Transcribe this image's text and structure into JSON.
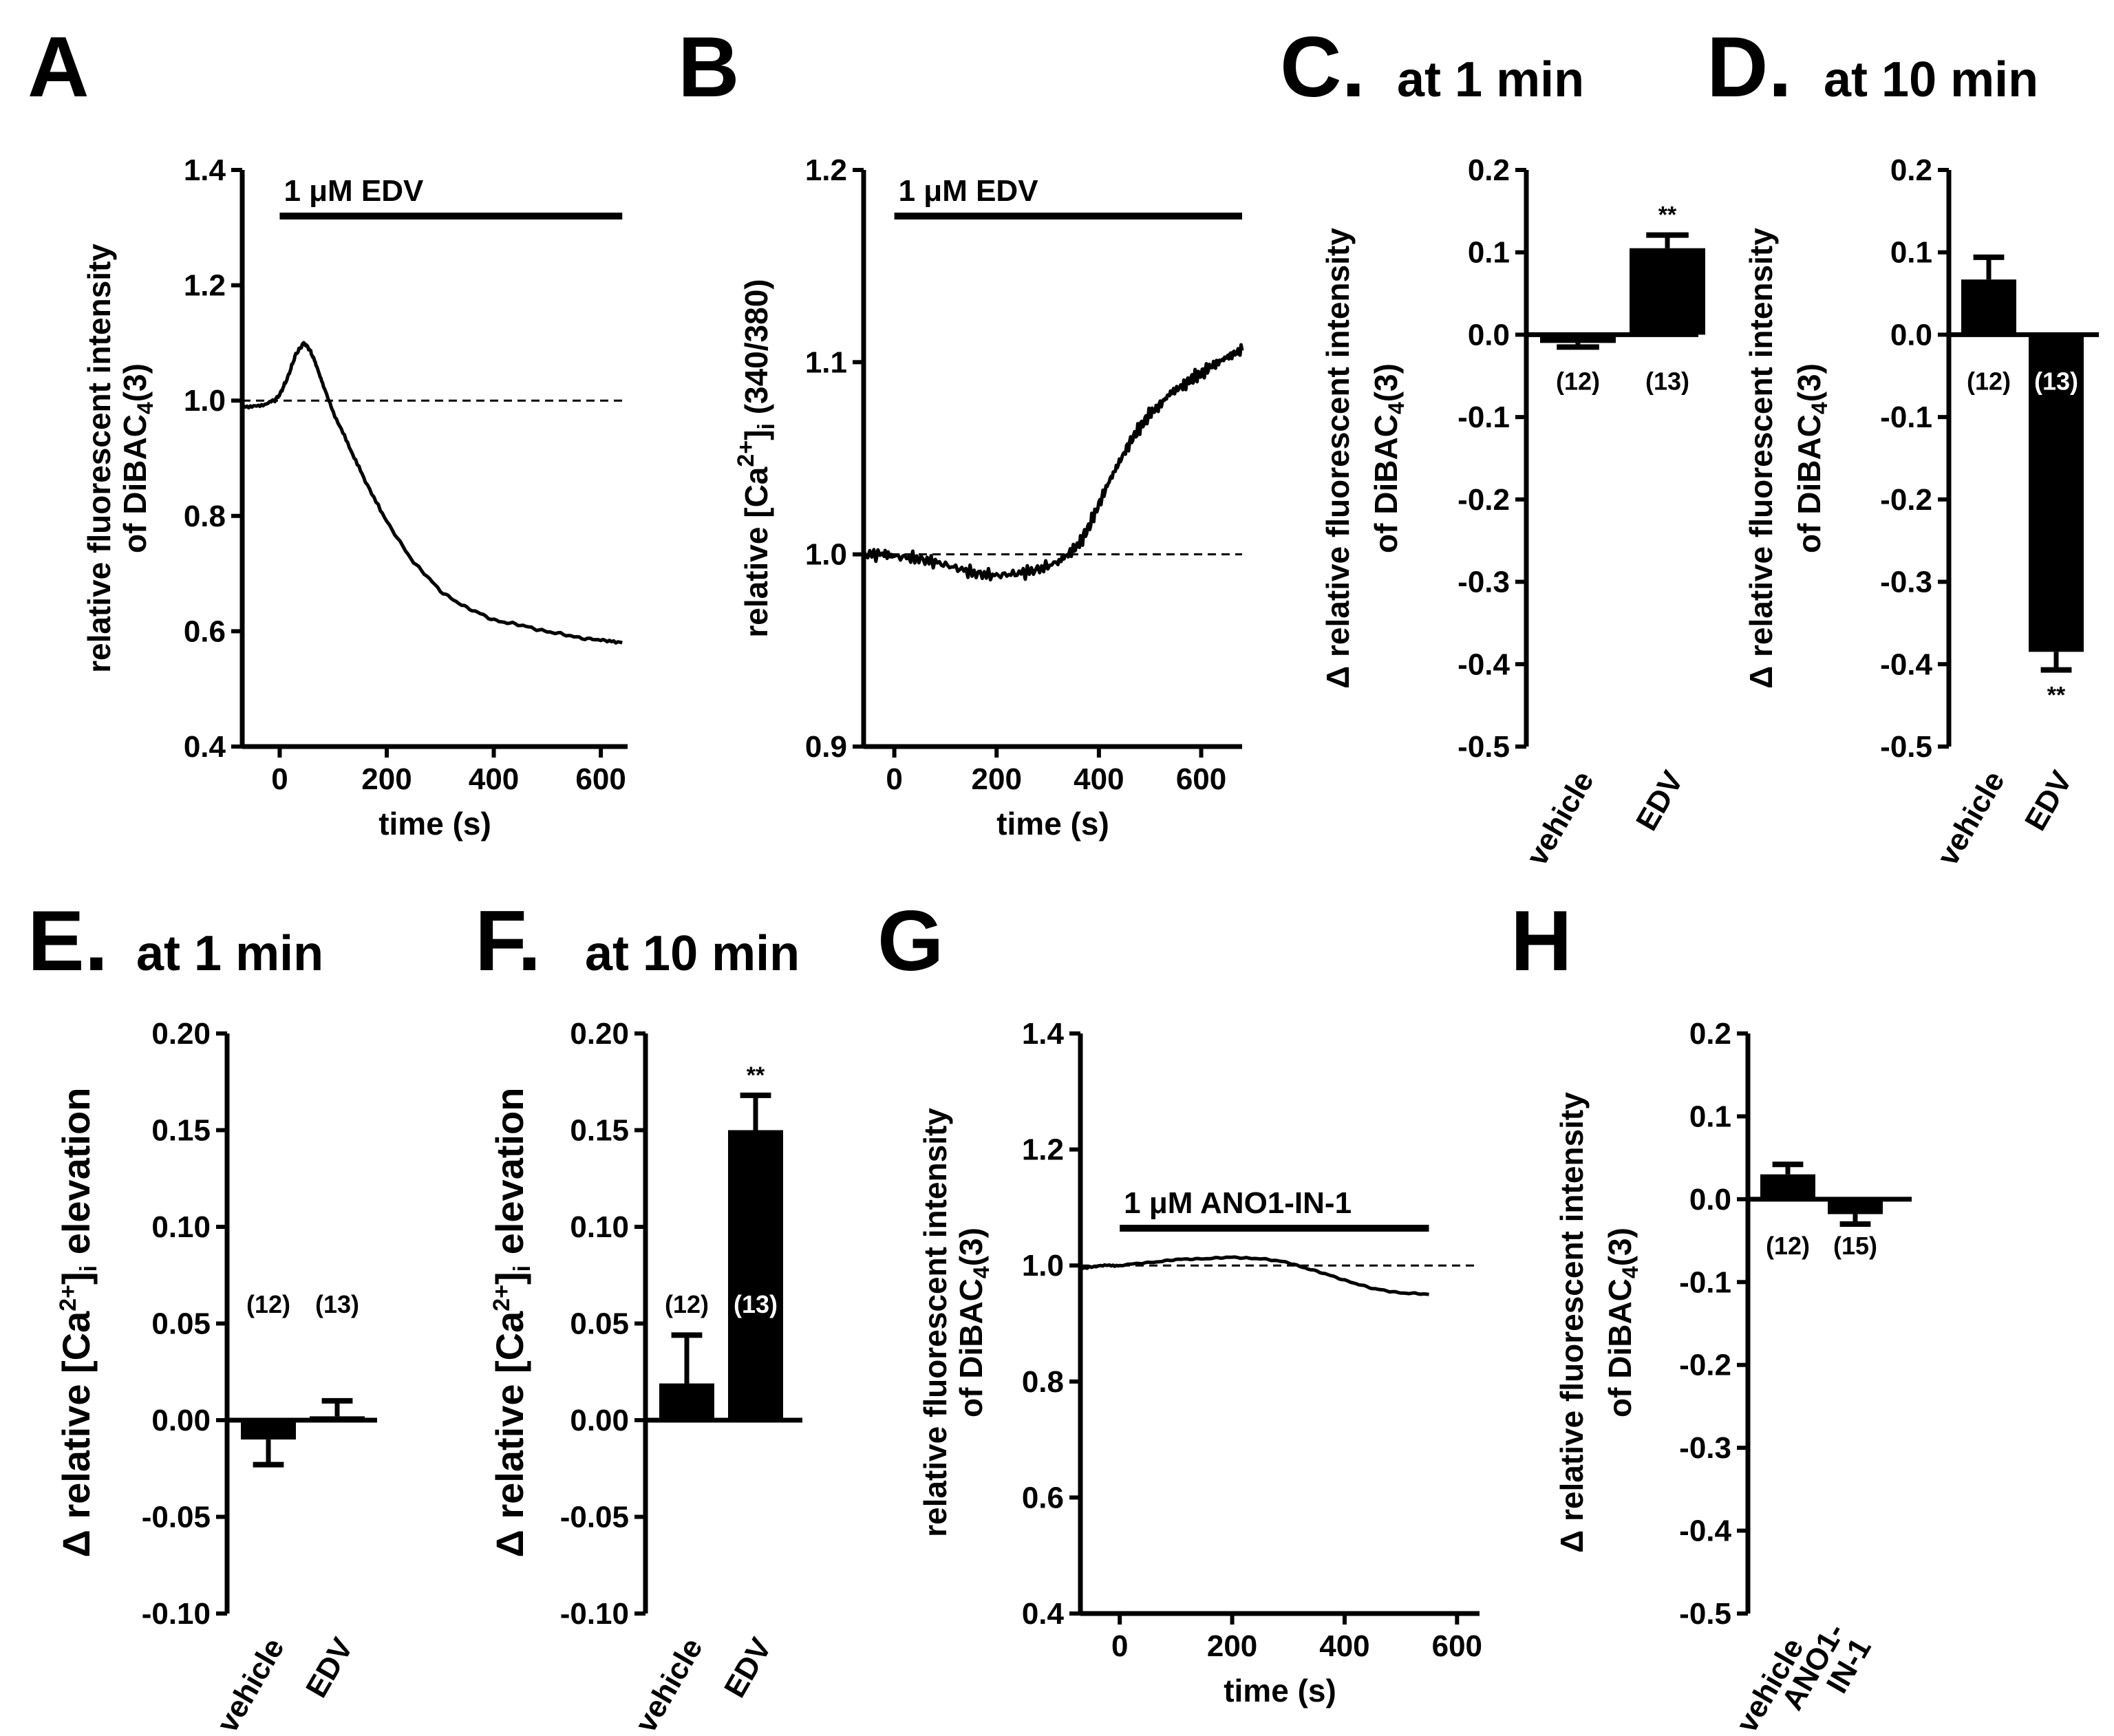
{
  "chart_data": [
    {
      "panel": "A",
      "type": "line",
      "title": "",
      "xlabel": "time (s)",
      "ylabel": "relative fluorescent intensity of DiBAC4(3)",
      "ylabel_line1": "relative fluorescent intensity",
      "ylabel_line2_pre": "of DiBAC",
      "ylabel_sub": "4",
      "ylabel_line2_post": "(3)",
      "xlim": [
        -70,
        650
      ],
      "ylim": [
        0.4,
        1.4
      ],
      "xticks": [
        0,
        200,
        400,
        600
      ],
      "yticks": [
        0.4,
        0.6,
        0.8,
        1.0,
        1.2,
        1.4
      ],
      "ytick_labels": [
        "0.4",
        "0.6",
        "0.8",
        "1.0",
        "1.2",
        "1.4"
      ],
      "baseline": 1.0,
      "annotation": "1 μM EDV",
      "annotation_range": [
        0,
        640
      ],
      "series": [
        {
          "name": "DiBAC4(3)",
          "x": [
            -70,
            -40,
            -10,
            0,
            15,
            30,
            45,
            55,
            65,
            80,
            100,
            130,
            160,
            200,
            250,
            300,
            350,
            400,
            450,
            500,
            550,
            600,
            640
          ],
          "y": [
            0.99,
            0.99,
            1.0,
            1.01,
            1.04,
            1.08,
            1.1,
            1.09,
            1.07,
            1.03,
            0.98,
            0.92,
            0.86,
            0.79,
            0.72,
            0.67,
            0.64,
            0.62,
            0.61,
            0.6,
            0.59,
            0.585,
            0.58
          ]
        }
      ]
    },
    {
      "panel": "B",
      "type": "line",
      "title": "",
      "xlabel": "time (s)",
      "ylabel": "relative [Ca2+]i (340/380)",
      "ylabel_pre": "relative [Ca",
      "ylabel_sup": "2+",
      "ylabel_mid": "]",
      "ylabel_sub": "i",
      "ylabel_post": " (340/380)",
      "xlim": [
        -60,
        680
      ],
      "ylim": [
        0.9,
        1.2
      ],
      "xticks": [
        0,
        200,
        400,
        600
      ],
      "yticks": [
        0.9,
        1.0,
        1.1,
        1.2
      ],
      "ytick_labels": [
        "0.9",
        "1.0",
        "1.1",
        "1.2"
      ],
      "baseline": 1.0,
      "annotation": "1 μM EDV",
      "annotation_range": [
        0,
        680
      ],
      "series": [
        {
          "name": "[Ca2+]i",
          "x": [
            -60,
            -20,
            0,
            40,
            80,
            120,
            160,
            200,
            240,
            280,
            320,
            340,
            360,
            380,
            400,
            420,
            440,
            460,
            480,
            500,
            520,
            540,
            560,
            580,
            600,
            620,
            640,
            660,
            680
          ],
          "y": [
            1.0,
            1.0,
            0.999,
            0.998,
            0.996,
            0.993,
            0.99,
            0.989,
            0.99,
            0.992,
            0.996,
            1.0,
            1.005,
            1.014,
            1.026,
            1.038,
            1.048,
            1.058,
            1.066,
            1.073,
            1.078,
            1.084,
            1.087,
            1.091,
            1.094,
            1.098,
            1.101,
            1.104,
            1.106
          ]
        }
      ]
    },
    {
      "panel": "C",
      "type": "bar",
      "title": "at 1 min",
      "categories": [
        "vehicle",
        "EDV"
      ],
      "values": [
        -0.01,
        0.105
      ],
      "errors": [
        0.005,
        0.016
      ],
      "n": [
        "(12)",
        "(13)"
      ],
      "significance": [
        "",
        "**"
      ],
      "ylabel": "Δ relative fluorescent intensity of DiBAC4(3)",
      "ylabel_line1": "Δ relative fluorescent intensity",
      "ylabel_line2_pre": "of DiBAC",
      "ylabel_sub": "4",
      "ylabel_line2_post": "(3)",
      "ylim": [
        -0.5,
        0.2
      ],
      "yticks": [
        -0.5,
        -0.4,
        -0.3,
        -0.2,
        -0.1,
        0.0,
        0.1,
        0.2
      ],
      "ytick_labels": [
        "-0.5",
        "-0.4",
        "-0.3",
        "-0.2",
        "-0.1",
        "0.0",
        "0.1",
        "0.2"
      ]
    },
    {
      "panel": "D",
      "type": "bar",
      "title": "at 10 min",
      "categories": [
        "vehicle",
        "EDV"
      ],
      "values": [
        0.067,
        -0.385
      ],
      "errors": [
        0.027,
        0.022
      ],
      "n": [
        "(12)",
        "(13)"
      ],
      "significance": [
        "",
        "**"
      ],
      "ylabel": "Δ relative fluorescent intensity of DiBAC4(3)",
      "ylabel_line1": "Δ relative fluorescent intensity",
      "ylabel_line2_pre": "of DiBAC",
      "ylabel_sub": "4",
      "ylabel_line2_post": "(3)",
      "ylim": [
        -0.5,
        0.2
      ],
      "yticks": [
        -0.5,
        -0.4,
        -0.3,
        -0.2,
        -0.1,
        0.0,
        0.1,
        0.2
      ],
      "ytick_labels": [
        "-0.5",
        "-0.4",
        "-0.3",
        "-0.2",
        "-0.1",
        "0.0",
        "0.1",
        "0.2"
      ]
    },
    {
      "panel": "E",
      "type": "bar",
      "title": "at 1 min",
      "categories": [
        "vehicle",
        "EDV"
      ],
      "values": [
        -0.01,
        0.002
      ],
      "errors": [
        0.013,
        0.008
      ],
      "n": [
        "(12)",
        "(13)"
      ],
      "significance": [
        "",
        ""
      ],
      "ylabel": "Δ relative [Ca2+]i elevation",
      "ylabel_pre": "Δ relative [Ca",
      "ylabel_sup": "2+",
      "ylabel_mid": "]",
      "ylabel_sub": "i",
      "ylabel_post": " elevation",
      "ylim": [
        -0.1,
        0.2
      ],
      "yticks": [
        -0.1,
        -0.05,
        0.0,
        0.05,
        0.1,
        0.15,
        0.2
      ],
      "ytick_labels": [
        "-0.10",
        "-0.05",
        "0.00",
        "0.05",
        "0.10",
        "0.15",
        "0.20"
      ]
    },
    {
      "panel": "F",
      "type": "bar",
      "title": "at 10 min",
      "categories": [
        "vehicle",
        "EDV"
      ],
      "values": [
        0.019,
        0.15
      ],
      "errors": [
        0.025,
        0.018
      ],
      "n": [
        "(12)",
        "(13)"
      ],
      "significance": [
        "",
        "**"
      ],
      "ylabel": "Δ relative [Ca2+]i elevation",
      "ylabel_pre": "Δ relative [Ca",
      "ylabel_sup": "2+",
      "ylabel_mid": "]",
      "ylabel_sub": "i",
      "ylabel_post": " elevation",
      "ylim": [
        -0.1,
        0.2
      ],
      "yticks": [
        -0.1,
        -0.05,
        0.0,
        0.05,
        0.1,
        0.15,
        0.2
      ],
      "ytick_labels": [
        "-0.10",
        "-0.05",
        "0.00",
        "0.05",
        "0.10",
        "0.15",
        "0.20"
      ]
    },
    {
      "panel": "G",
      "type": "line",
      "title": "",
      "xlabel": "time (s)",
      "ylabel": "relative fluorescent intensity of DiBAC4(3)",
      "ylabel_line1": "relative fluorescent intensity",
      "ylabel_line2_pre": "of DiBAC",
      "ylabel_sub": "4",
      "ylabel_line2_post": "(3)",
      "xlim": [
        -70,
        640
      ],
      "ylim": [
        0.4,
        1.4
      ],
      "xticks": [
        0,
        200,
        400,
        600
      ],
      "yticks": [
        0.4,
        0.6,
        0.8,
        1.0,
        1.2,
        1.4
      ],
      "ytick_labels": [
        "0.4",
        "0.6",
        "0.8",
        "1.0",
        "1.2",
        "1.4"
      ],
      "baseline": 1.0,
      "annotation": "1 μM ANO1-IN-1",
      "annotation_range": [
        0,
        550
      ],
      "series": [
        {
          "name": "DiBAC4(3)",
          "x": [
            -70,
            -30,
            0,
            50,
            100,
            150,
            200,
            250,
            300,
            350,
            400,
            450,
            500,
            550
          ],
          "y": [
            0.995,
            1.0,
            1.0,
            1.005,
            1.01,
            1.012,
            1.014,
            1.012,
            1.005,
            0.99,
            0.975,
            0.96,
            0.953,
            0.95
          ]
        }
      ]
    },
    {
      "panel": "H",
      "type": "bar",
      "title": "",
      "categories": [
        "vehicle",
        "ANO1-IN-1"
      ],
      "category_lines": [
        [
          "vehicle"
        ],
        [
          "ANO1-",
          "IN-1"
        ]
      ],
      "values": [
        0.03,
        -0.018
      ],
      "errors": [
        0.012,
        0.012
      ],
      "n": [
        "(12)",
        "(15)"
      ],
      "significance": [
        "",
        ""
      ],
      "ylabel": "Δ relative fluorescent intensity of DiBAC4(3)",
      "ylabel_line1": "Δ relative fluorescent intensity",
      "ylabel_line2_pre": "of DiBAC",
      "ylabel_sub": "4",
      "ylabel_line2_post": "(3)",
      "ylim": [
        -0.5,
        0.2
      ],
      "yticks": [
        -0.5,
        -0.4,
        -0.3,
        -0.2,
        -0.1,
        0.0,
        0.1,
        0.2
      ],
      "ytick_labels": [
        "-0.5",
        "-0.4",
        "-0.3",
        "-0.2",
        "-0.1",
        "0.0",
        "0.1",
        "0.2"
      ]
    }
  ]
}
